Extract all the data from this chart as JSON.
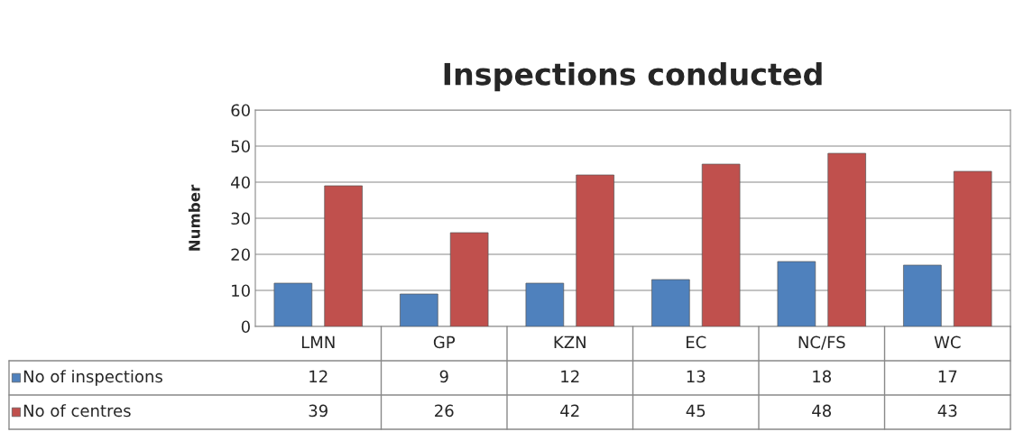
{
  "chart_data": {
    "type": "bar",
    "title": "Inspections conducted",
    "ylabel": "Number",
    "categories": [
      "LMN",
      "GP",
      "KZN",
      "EC",
      "NC/FS",
      "WC"
    ],
    "series": [
      {
        "name": "No of inspections",
        "color": "#4f81bd",
        "values": [
          12,
          9,
          12,
          13,
          18,
          17
        ]
      },
      {
        "name": "No of centres",
        "color": "#c0504d",
        "values": [
          39,
          26,
          42,
          45,
          48,
          43
        ]
      }
    ],
    "ylim": [
      0,
      60
    ],
    "yticks": [
      0,
      10,
      20,
      30,
      40,
      50,
      60
    ],
    "grid": "y",
    "data_labels": true,
    "legend": "bottom left"
  }
}
